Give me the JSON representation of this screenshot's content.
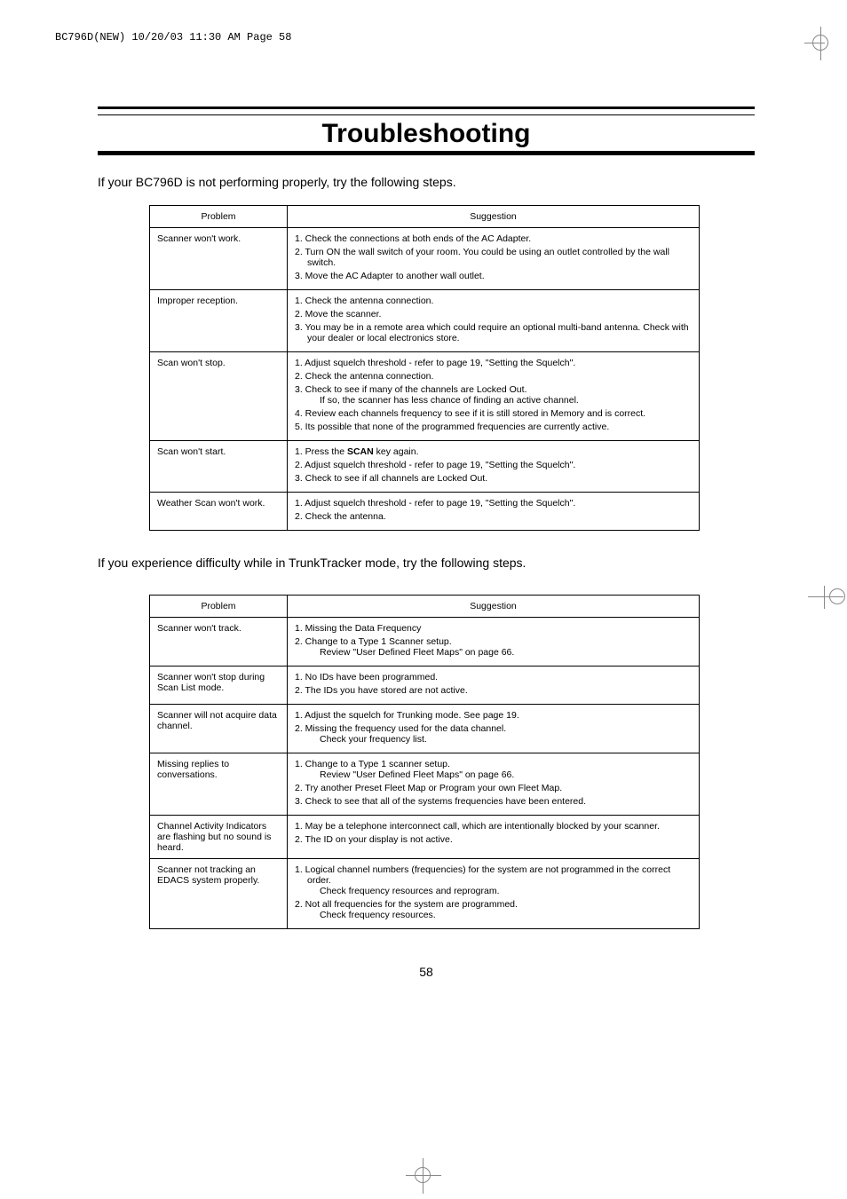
{
  "header_line": "BC796D(NEW)  10/20/03 11:30 AM  Page 58",
  "title": "Troubleshooting",
  "intro1": "If your BC796D is not performing properly, try the following steps.",
  "intro2": "If you experience difficulty while in TrunkTracker mode, try the following steps.",
  "page_number": "58",
  "table1": {
    "headers": [
      "Problem",
      "Suggestion"
    ],
    "rows": [
      {
        "problem": "Scanner won't work.",
        "steps": [
          "1.  Check the connections at both ends of the AC Adapter.",
          "2.  Turn ON the wall switch of your room.  You could be using an outlet controlled by the wall switch.",
          "3.  Move the AC Adapter to another wall outlet."
        ]
      },
      {
        "problem": "Improper reception.",
        "steps": [
          "1.  Check the antenna connection.",
          "2.  Move the scanner.",
          "3.  You may be in a remote area which could require an optional multi-band antenna.   Check with your dealer or local electronics store."
        ]
      },
      {
        "problem": "Scan won't stop.",
        "steps": [
          "1.  Adjust squelch threshold - refer to page 19, \"Setting the Squelch\".",
          "2.  Check the antenna connection.",
          "3.  Check to see if many of the channels are Locked Out.",
          "     If so, the scanner has less chance of finding an active channel.",
          "4.  Review each channels frequency to see if it is still stored in Memory and is correct.",
          "5.  Its possible that none of the programmed frequencies are currently active."
        ]
      },
      {
        "problem": "Scan won't start.",
        "steps": [
          "1.  Press the <b>SCAN</b> key again.",
          "2.  Adjust squelch threshold - refer to page 19, \"Setting the Squelch\".",
          "3.  Check to see if all channels are Locked Out."
        ]
      },
      {
        "problem": "Weather Scan won't work.",
        "steps": [
          "1.  Adjust squelch threshold - refer to page 19, \"Setting the Squelch\".",
          "2.  Check the antenna."
        ]
      }
    ]
  },
  "table2": {
    "headers": [
      "Problem",
      "Suggestion"
    ],
    "rows": [
      {
        "problem": "Scanner won't track.",
        "steps": [
          "1.  Missing the Data Frequency",
          "2.  Change to a Type 1 Scanner setup.",
          "     Review \"User Defined Fleet Maps\" on page 66."
        ]
      },
      {
        "problem": "Scanner won't stop during Scan List mode.",
        "steps": [
          "1.  No IDs have been programmed.",
          "2.  The IDs you have stored are not active."
        ]
      },
      {
        "problem": "Scanner will not acquire data channel.",
        "steps": [
          "1.  Adjust the squelch for Trunking mode. See page 19.",
          "2.  Missing the frequency used for the data channel.",
          "     Check your frequency list."
        ]
      },
      {
        "problem": "Missing replies to conversations.",
        "steps": [
          "1.  Change to a Type 1 scanner setup.",
          "     Review \"User Defined Fleet Maps\" on page 66.",
          "2.  Try another Preset Fleet Map or Program your own Fleet Map.",
          "3.  Check to see that all of the systems frequencies have been entered."
        ]
      },
      {
        "problem": "Channel Activity Indicators are flashing but no sound is heard.",
        "steps": [
          "1.  May be a telephone interconnect call, which are intentionally blocked by your scanner.",
          "2.  The ID on your display is not active."
        ]
      },
      {
        "problem": "Scanner not tracking an EDACS system properly.",
        "steps": [
          "1.  Logical channel numbers (frequencies) for the system are not programmed in the correct order.",
          "     Check frequency resources and reprogram.",
          "2.  Not all frequencies for the system are programmed.",
          "     Check frequency resources."
        ]
      }
    ]
  }
}
